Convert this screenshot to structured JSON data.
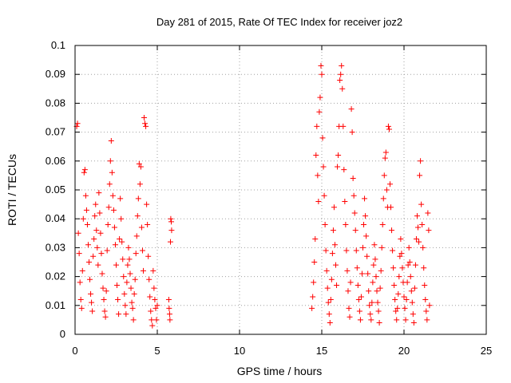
{
  "chart_data": {
    "type": "scatter",
    "title": "Day 281 of 2015, Rate Of TEC Index for receiver joz2",
    "xlabel": "GPS time / hours",
    "ylabel": "ROTI / TECUs",
    "xlim": [
      0,
      25
    ],
    "ylim": [
      0,
      0.1
    ],
    "x_ticks": [
      0,
      5,
      10,
      15,
      20,
      25
    ],
    "x_tick_labels": [
      "0",
      "5",
      "10",
      "15",
      "20",
      "25"
    ],
    "y_ticks": [
      0,
      0.01,
      0.02,
      0.03,
      0.04,
      0.05,
      0.06,
      0.07,
      0.08,
      0.09,
      0.1
    ],
    "y_tick_labels": [
      "0",
      "0.01",
      "0.02",
      "0.03",
      "0.04",
      "0.05",
      "0.06",
      "0.07",
      "0.08",
      "0.09",
      "0.1"
    ],
    "grid": true,
    "legend": "none",
    "marker": "plus",
    "colors": {
      "points": "#ff0000",
      "grid": "#a0a0a0",
      "axes": "#000000"
    },
    "series": [
      {
        "points": [
          [
            0.1,
            0.072
          ],
          [
            0.15,
            0.073
          ],
          [
            0.2,
            0.035
          ],
          [
            0.25,
            0.028
          ],
          [
            0.3,
            0.018
          ],
          [
            0.35,
            0.012
          ],
          [
            0.4,
            0.009
          ],
          [
            0.45,
            0.022
          ],
          [
            0.5,
            0.04
          ],
          [
            0.55,
            0.056
          ],
          [
            0.6,
            0.057
          ],
          [
            0.65,
            0.048
          ],
          [
            0.7,
            0.043
          ],
          [
            0.75,
            0.038
          ],
          [
            0.8,
            0.031
          ],
          [
            0.85,
            0.025
          ],
          [
            0.9,
            0.019
          ],
          [
            0.95,
            0.014
          ],
          [
            1.0,
            0.011
          ],
          [
            1.05,
            0.008
          ],
          [
            1.1,
            0.027
          ],
          [
            1.15,
            0.033
          ],
          [
            1.2,
            0.041
          ],
          [
            1.25,
            0.045
          ],
          [
            1.3,
            0.036
          ],
          [
            1.35,
            0.03
          ],
          [
            1.4,
            0.024
          ],
          [
            1.45,
            0.049
          ],
          [
            1.5,
            0.042
          ],
          [
            1.55,
            0.035
          ],
          [
            1.6,
            0.028
          ],
          [
            1.65,
            0.021
          ],
          [
            1.7,
            0.016
          ],
          [
            1.75,
            0.012
          ],
          [
            1.8,
            0.008
          ],
          [
            1.85,
            0.006
          ],
          [
            1.9,
            0.015
          ],
          [
            1.95,
            0.029
          ],
          [
            2.0,
            0.038
          ],
          [
            2.05,
            0.044
          ],
          [
            2.1,
            0.052
          ],
          [
            2.15,
            0.06
          ],
          [
            2.2,
            0.067
          ],
          [
            2.25,
            0.056
          ],
          [
            2.3,
            0.048
          ],
          [
            2.35,
            0.043
          ],
          [
            2.4,
            0.037
          ],
          [
            2.45,
            0.031
          ],
          [
            2.5,
            0.024
          ],
          [
            2.55,
            0.017
          ],
          [
            2.6,
            0.012
          ],
          [
            2.65,
            0.007
          ],
          [
            2.7,
            0.033
          ],
          [
            2.75,
            0.047
          ],
          [
            2.8,
            0.04
          ],
          [
            2.85,
            0.032
          ],
          [
            2.9,
            0.026
          ],
          [
            2.95,
            0.02
          ],
          [
            3.0,
            0.014
          ],
          [
            3.05,
            0.01
          ],
          [
            3.1,
            0.007
          ],
          [
            3.15,
            0.018
          ],
          [
            3.2,
            0.024
          ],
          [
            3.25,
            0.03
          ],
          [
            3.3,
            0.026
          ],
          [
            3.35,
            0.021
          ],
          [
            3.4,
            0.016
          ],
          [
            3.45,
            0.011
          ],
          [
            3.5,
            0.009
          ],
          [
            3.55,
            0.005
          ],
          [
            3.6,
            0.014
          ],
          [
            3.65,
            0.019
          ],
          [
            3.7,
            0.028
          ],
          [
            3.75,
            0.034
          ],
          [
            3.8,
            0.041
          ],
          [
            3.85,
            0.047
          ],
          [
            3.9,
            0.059
          ],
          [
            3.95,
            0.052
          ],
          [
            4.0,
            0.058
          ],
          [
            4.05,
            0.037
          ],
          [
            4.1,
            0.029
          ],
          [
            4.15,
            0.022
          ],
          [
            4.2,
            0.075
          ],
          [
            4.25,
            0.073
          ],
          [
            4.3,
            0.072
          ],
          [
            4.35,
            0.045
          ],
          [
            4.4,
            0.038
          ],
          [
            4.45,
            0.027
          ],
          [
            4.5,
            0.019
          ],
          [
            4.55,
            0.013
          ],
          [
            4.6,
            0.008
          ],
          [
            4.65,
            0.005
          ],
          [
            4.7,
            0.003
          ],
          [
            4.75,
            0.022
          ],
          [
            4.8,
            0.016
          ],
          [
            4.85,
            0.012
          ],
          [
            4.9,
            0.009
          ],
          [
            4.95,
            0.005
          ],
          [
            5.0,
            0.01
          ],
          [
            5.7,
            0.012
          ],
          [
            5.72,
            0.009
          ],
          [
            5.75,
            0.007
          ],
          [
            5.77,
            0.005
          ],
          [
            5.8,
            0.032
          ],
          [
            5.82,
            0.04
          ],
          [
            5.85,
            0.039
          ],
          [
            5.87,
            0.036
          ],
          [
            14.4,
            0.009
          ],
          [
            14.45,
            0.013
          ],
          [
            14.5,
            0.018
          ],
          [
            14.55,
            0.025
          ],
          [
            14.6,
            0.033
          ],
          [
            14.65,
            0.062
          ],
          [
            14.7,
            0.072
          ],
          [
            14.75,
            0.055
          ],
          [
            14.8,
            0.046
          ],
          [
            14.85,
            0.077
          ],
          [
            14.9,
            0.082
          ],
          [
            14.95,
            0.093
          ],
          [
            15.0,
            0.09
          ],
          [
            15.05,
            0.068
          ],
          [
            15.1,
            0.058
          ],
          [
            15.15,
            0.048
          ],
          [
            15.2,
            0.038
          ],
          [
            15.25,
            0.029
          ],
          [
            15.3,
            0.022
          ],
          [
            15.35,
            0.016
          ],
          [
            15.4,
            0.011
          ],
          [
            15.45,
            0.007
          ],
          [
            15.5,
            0.004
          ],
          [
            15.55,
            0.012
          ],
          [
            15.6,
            0.019
          ],
          [
            15.65,
            0.028
          ],
          [
            15.7,
            0.036
          ],
          [
            15.75,
            0.044
          ],
          [
            15.8,
            0.031
          ],
          [
            15.85,
            0.024
          ],
          [
            15.9,
            0.017
          ],
          [
            15.95,
            0.058
          ],
          [
            16.0,
            0.062
          ],
          [
            16.05,
            0.072
          ],
          [
            16.1,
            0.088
          ],
          [
            16.15,
            0.09
          ],
          [
            16.2,
            0.093
          ],
          [
            16.25,
            0.085
          ],
          [
            16.3,
            0.072
          ],
          [
            16.35,
            0.057
          ],
          [
            16.4,
            0.046
          ],
          [
            16.45,
            0.038
          ],
          [
            16.5,
            0.029
          ],
          [
            16.55,
            0.022
          ],
          [
            16.6,
            0.015
          ],
          [
            16.65,
            0.009
          ],
          [
            16.7,
            0.006
          ],
          [
            16.75,
            0.018
          ],
          [
            16.8,
            0.078
          ],
          [
            16.85,
            0.07
          ],
          [
            16.9,
            0.054
          ],
          [
            16.95,
            0.048
          ],
          [
            17.0,
            0.042
          ],
          [
            17.05,
            0.036
          ],
          [
            17.1,
            0.029
          ],
          [
            17.15,
            0.023
          ],
          [
            17.2,
            0.017
          ],
          [
            17.25,
            0.012
          ],
          [
            17.3,
            0.008
          ],
          [
            17.35,
            0.005
          ],
          [
            17.4,
            0.013
          ],
          [
            17.45,
            0.021
          ],
          [
            17.5,
            0.03
          ],
          [
            17.55,
            0.038
          ],
          [
            17.6,
            0.047
          ],
          [
            17.65,
            0.041
          ],
          [
            17.7,
            0.034
          ],
          [
            17.75,
            0.027
          ],
          [
            17.8,
            0.021
          ],
          [
            17.85,
            0.015
          ],
          [
            17.9,
            0.01
          ],
          [
            17.95,
            0.007
          ],
          [
            18.0,
            0.005
          ],
          [
            18.05,
            0.011
          ],
          [
            18.1,
            0.018
          ],
          [
            18.15,
            0.024
          ],
          [
            18.2,
            0.031
          ],
          [
            18.25,
            0.026
          ],
          [
            18.3,
            0.02
          ],
          [
            18.35,
            0.015
          ],
          [
            18.4,
            0.011
          ],
          [
            18.45,
            0.008
          ],
          [
            18.5,
            0.004
          ],
          [
            18.55,
            0.016
          ],
          [
            18.6,
            0.022
          ],
          [
            18.65,
            0.03
          ],
          [
            18.7,
            0.038
          ],
          [
            18.75,
            0.047
          ],
          [
            18.8,
            0.055
          ],
          [
            18.85,
            0.061
          ],
          [
            18.9,
            0.063
          ],
          [
            18.95,
            0.05
          ],
          [
            19.0,
            0.044
          ],
          [
            19.05,
            0.072
          ],
          [
            19.1,
            0.071
          ],
          [
            19.15,
            0.052
          ],
          [
            19.2,
            0.044
          ],
          [
            19.25,
            0.036
          ],
          [
            19.3,
            0.029
          ],
          [
            19.35,
            0.023
          ],
          [
            19.4,
            0.017
          ],
          [
            19.45,
            0.012
          ],
          [
            19.5,
            0.008
          ],
          [
            19.55,
            0.005
          ],
          [
            19.6,
            0.009
          ],
          [
            19.65,
            0.014
          ],
          [
            19.7,
            0.02
          ],
          [
            19.75,
            0.027
          ],
          [
            19.8,
            0.033
          ],
          [
            19.85,
            0.028
          ],
          [
            19.9,
            0.023
          ],
          [
            19.95,
            0.018
          ],
          [
            20.0,
            0.013
          ],
          [
            20.05,
            0.009
          ],
          [
            20.1,
            0.005
          ],
          [
            20.15,
            0.012
          ],
          [
            20.2,
            0.018
          ],
          [
            20.25,
            0.024
          ],
          [
            20.3,
            0.03
          ],
          [
            20.35,
            0.025
          ],
          [
            20.4,
            0.02
          ],
          [
            20.45,
            0.015
          ],
          [
            20.5,
            0.011
          ],
          [
            20.55,
            0.007
          ],
          [
            20.6,
            0.004
          ],
          [
            20.65,
            0.016
          ],
          [
            20.7,
            0.024
          ],
          [
            20.75,
            0.033
          ],
          [
            20.8,
            0.041
          ],
          [
            20.85,
            0.037
          ],
          [
            20.9,
            0.032
          ],
          [
            20.95,
            0.055
          ],
          [
            21.0,
            0.06
          ],
          [
            21.05,
            0.045
          ],
          [
            21.1,
            0.038
          ],
          [
            21.15,
            0.03
          ],
          [
            21.2,
            0.023
          ],
          [
            21.25,
            0.017
          ],
          [
            21.3,
            0.012
          ],
          [
            21.35,
            0.008
          ],
          [
            21.4,
            0.005
          ],
          [
            21.45,
            0.042
          ],
          [
            21.5,
            0.036
          ],
          [
            21.55,
            0.01
          ]
        ]
      }
    ]
  }
}
